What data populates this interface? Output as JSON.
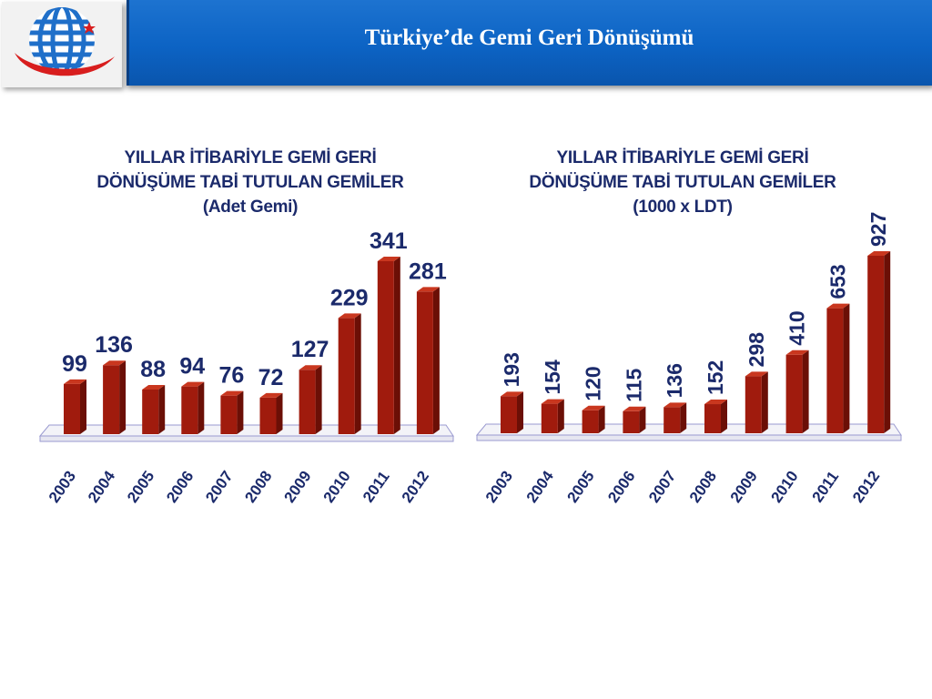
{
  "header": {
    "title": "Türkiye’de Gemi Geri Dönüşümü"
  },
  "colors": {
    "header_blue": "#0c63c4",
    "bar_front": "#a01b0d",
    "bar_side": "#6b0f06",
    "bar_top": "#c9371f",
    "label_color": "#1b2a6b",
    "floor_edge": "#9a9ad0"
  },
  "logo": {
    "icon": "globe-logo-icon"
  },
  "chart_data": [
    {
      "type": "bar",
      "title_lines": [
        "YILLAR İTİBARİYLE GEMİ GERİ",
        "DÖNÜŞÜME TABİ TUTULAN GEMİLER",
        "(Adet Gemi)"
      ],
      "categories": [
        "2003",
        "2004",
        "2005",
        "2006",
        "2007",
        "2008",
        "2009",
        "2010",
        "2011",
        "2012"
      ],
      "values": [
        99,
        136,
        88,
        94,
        76,
        72,
        127,
        229,
        341,
        281
      ],
      "label_rotation": "horizontal",
      "ylim": [
        0,
        341
      ],
      "grid": false,
      "legend": "none"
    },
    {
      "type": "bar",
      "title_lines": [
        "YILLAR İTİBARİYLE GEMİ GERİ",
        "DÖNÜŞÜME TABİ TUTULAN GEMİLER",
        "(1000 x LDT)"
      ],
      "categories": [
        "2003",
        "2004",
        "2005",
        "2006",
        "2007",
        "2008",
        "2009",
        "2010",
        "2011",
        "2012"
      ],
      "values": [
        193,
        154,
        120,
        115,
        136,
        152,
        298,
        410,
        653,
        927
      ],
      "label_rotation": "vertical",
      "ylim": [
        0,
        927
      ],
      "grid": false,
      "legend": "none"
    }
  ]
}
